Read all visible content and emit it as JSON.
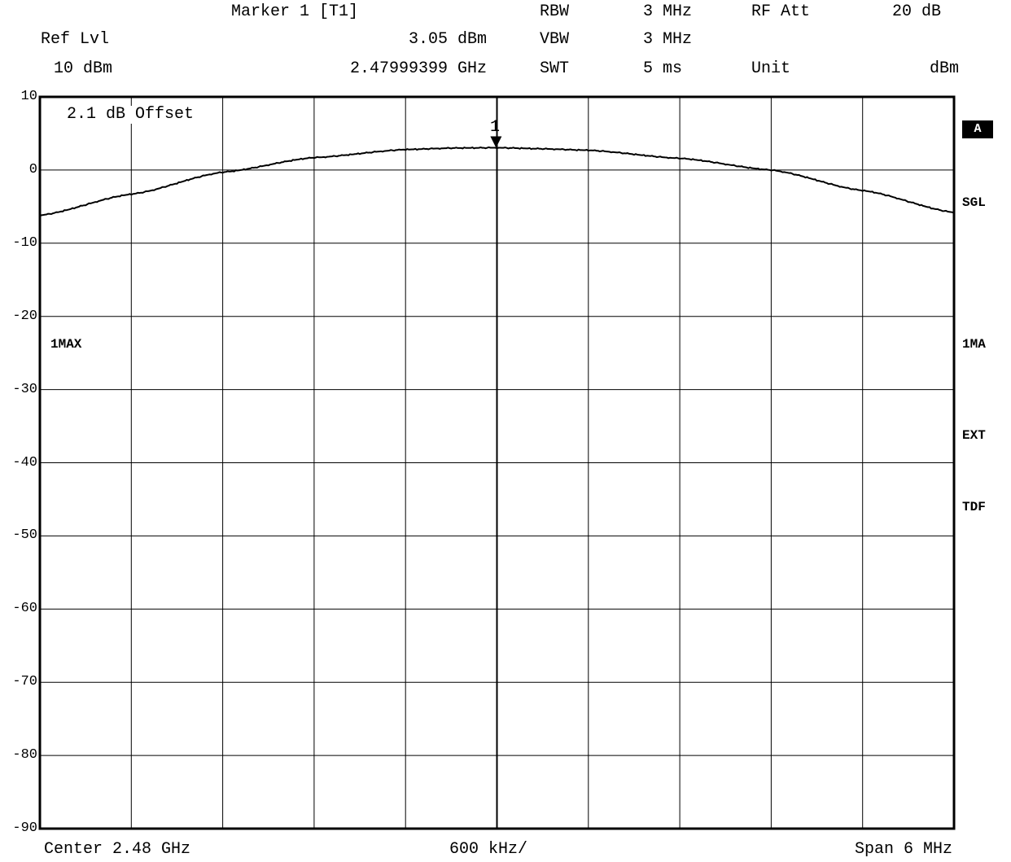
{
  "header": {
    "marker_title": "Marker 1 [T1]",
    "ref_lvl_label": "Ref Lvl",
    "ref_lvl_value": "10 dBm",
    "marker_level": "3.05 dBm",
    "marker_freq": "2.47999399 GHz",
    "rbw_label": "RBW",
    "rbw_value": "3 MHz",
    "vbw_label": "VBW",
    "vbw_value": "3 MHz",
    "swt_label": "SWT",
    "swt_value": "5 ms",
    "rfatt_label": "RF Att",
    "rfatt_value": "20 dB",
    "unit_label": "Unit",
    "unit_value": "dBm"
  },
  "annotations": {
    "offset": "2.1 dB Offset",
    "marker_number": "1",
    "trace_left": "1MAX"
  },
  "side_labels": {
    "trace_mode": "A",
    "sgl": "SGL",
    "trace_right": "1MA",
    "ext": "EXT",
    "tdf": "TDF"
  },
  "footer": {
    "center": "Center 2.48 GHz",
    "per_div": "600 kHz/",
    "span": "Span 6 MHz"
  },
  "colors": {
    "trace": "#000000",
    "grid": "#000000",
    "background": "#ffffff"
  },
  "chart_data": {
    "type": "line",
    "title": "",
    "xlabel": "",
    "ylabel": "",
    "xlim": [
      2.477,
      2.483
    ],
    "ylim": [
      -90,
      10
    ],
    "x_unit": "GHz",
    "y_unit": "dBm",
    "yticks": [
      10,
      0,
      -10,
      -20,
      -30,
      -40,
      -50,
      -60,
      -70,
      -80,
      -90
    ],
    "ytick_labels": [
      "10",
      "0",
      "-10",
      "-20",
      "-30",
      "-40",
      "-50",
      "-60",
      "-70",
      "-80",
      "-90"
    ],
    "grid": true,
    "x_divisions": 10,
    "series": [
      {
        "x": [
          2.477,
          2.4776,
          2.4782,
          2.4788,
          2.4794,
          2.4797,
          2.48,
          2.4803,
          2.4806,
          2.4812,
          2.4818,
          2.4824,
          2.483
        ],
        "y": [
          -6.2,
          -3.3,
          -0.3,
          1.7,
          2.8,
          3.0,
          3.05,
          2.9,
          2.7,
          1.6,
          0.0,
          -2.8,
          -5.8
        ]
      }
    ],
    "marker": {
      "x": 2.47999399,
      "y": 3.05,
      "label": "1"
    }
  }
}
